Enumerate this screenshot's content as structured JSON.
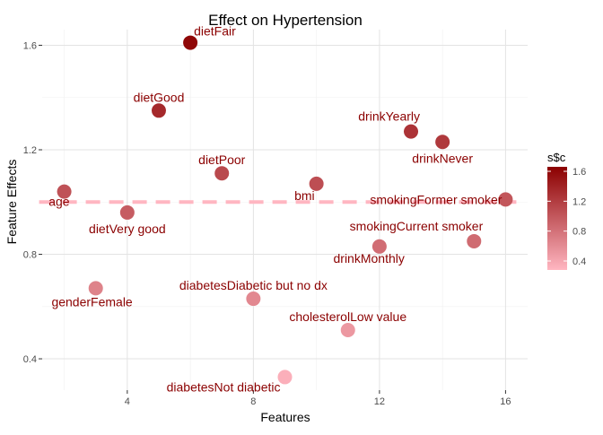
{
  "chart_data": {
    "type": "scatter",
    "title": "Effect on Hypertension",
    "xlabel": "Features",
    "ylabel": "Feature Effects",
    "xlim": [
      1.3,
      16.7
    ],
    "ylim": [
      0.28,
      1.66
    ],
    "x_ticks": [
      4,
      8,
      12,
      16
    ],
    "y_ticks": [
      0.4,
      0.8,
      1.2,
      1.6
    ],
    "x_tick_labels": [
      "4",
      "8",
      "12",
      "16"
    ],
    "y_tick_labels": [
      "0.4",
      "0.8",
      "1.2",
      "1.6"
    ],
    "grid": true,
    "reference_line": {
      "y": 1.0,
      "style": "dashed",
      "color": "#ffb6c1"
    },
    "color_scale": {
      "low": "#ffb6c1",
      "high": "#8b0000",
      "min": 0.28,
      "max": 1.66
    },
    "legend": {
      "title": "s$c",
      "placement": "right",
      "ticks": [
        0.4,
        0.8,
        1.2,
        1.6
      ],
      "tick_labels": [
        "0.4",
        "0.8",
        "1.2",
        "1.6"
      ]
    },
    "points": [
      {
        "label": "age",
        "x": 2,
        "y": 1.04,
        "anchor": "below-left"
      },
      {
        "label": "genderFemale",
        "x": 3,
        "y": 0.67,
        "anchor": "below-left"
      },
      {
        "label": "dietVery good",
        "x": 4,
        "y": 0.96,
        "anchor": "below"
      },
      {
        "label": "dietGood",
        "x": 5,
        "y": 1.35,
        "anchor": "above"
      },
      {
        "label": "dietFair",
        "x": 6,
        "y": 1.61,
        "anchor": "above-right"
      },
      {
        "label": "dietPoor",
        "x": 7,
        "y": 1.11,
        "anchor": "above"
      },
      {
        "label": "diabetesDiabetic but no dx",
        "x": 8,
        "y": 0.63,
        "anchor": "above"
      },
      {
        "label": "diabetesNot diabetic",
        "x": 9,
        "y": 0.33,
        "anchor": "below-left"
      },
      {
        "label": "bmi",
        "x": 10,
        "y": 1.07,
        "anchor": "below-left"
      },
      {
        "label": "cholesterolLow value",
        "x": 11,
        "y": 0.51,
        "anchor": "above"
      },
      {
        "label": "drinkMonthly",
        "x": 12,
        "y": 0.83,
        "anchor": "below-left"
      },
      {
        "label": "drinkYearly",
        "x": 13,
        "y": 1.27,
        "anchor": "above-left"
      },
      {
        "label": "drinkNever",
        "x": 14,
        "y": 1.23,
        "anchor": "below"
      },
      {
        "label": "smokingCurrent smoker",
        "x": 15,
        "y": 0.85,
        "anchor": "above-left"
      },
      {
        "label": "smokingFormer smoker",
        "x": 16,
        "y": 1.01,
        "anchor": "left"
      }
    ]
  }
}
